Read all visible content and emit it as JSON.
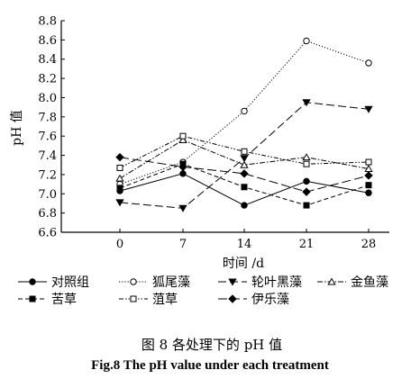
{
  "chart_data": {
    "type": "line",
    "xlabel": "时间 /d",
    "ylabel": "pH 值",
    "x": [
      0,
      7,
      14,
      21,
      28
    ],
    "ylim": [
      6.6,
      8.8
    ],
    "yticks": [
      "6.6",
      "6.8",
      "7.0",
      "7.2",
      "7.4",
      "7.6",
      "7.8",
      "8.0",
      "8.2",
      "8.4",
      "8.6",
      "8.8"
    ],
    "xticks": [
      "0",
      "7",
      "14",
      "21",
      "28"
    ],
    "grid": false,
    "legend_position": "bottom",
    "series": [
      {
        "name": "对照组",
        "values": [
          7.03,
          7.21,
          6.88,
          7.13,
          7.01
        ],
        "marker": "circle-filled",
        "dash": "solid"
      },
      {
        "name": "狐尾藻",
        "values": [
          7.1,
          7.33,
          7.86,
          8.59,
          8.36
        ],
        "marker": "circle-open",
        "dash": "dotted"
      },
      {
        "name": "轮叶黑藻",
        "values": [
          6.91,
          6.85,
          7.37,
          7.95,
          7.88
        ],
        "marker": "triangle-down-filled",
        "dash": "long-dash"
      },
      {
        "name": "金鱼藻",
        "values": [
          7.16,
          7.56,
          7.3,
          7.38,
          7.26
        ],
        "marker": "triangle-up-open",
        "dash": "dash-dot"
      },
      {
        "name": "苦草",
        "values": [
          7.06,
          7.31,
          7.07,
          6.88,
          7.09
        ],
        "marker": "square-filled",
        "dash": "dashed"
      },
      {
        "name": "菹草",
        "values": [
          7.27,
          7.6,
          7.44,
          7.31,
          7.33
        ],
        "marker": "square-open",
        "dash": "dash-dot-dot"
      },
      {
        "name": "伊乐藻",
        "values": [
          7.38,
          7.28,
          7.21,
          7.02,
          7.19
        ],
        "marker": "diamond-filled",
        "dash": "long-dash-2"
      }
    ]
  },
  "caption": {
    "cn": "图 8  各处理下的 pH 值",
    "en": "Fig.8  The pH value under each treatment"
  }
}
